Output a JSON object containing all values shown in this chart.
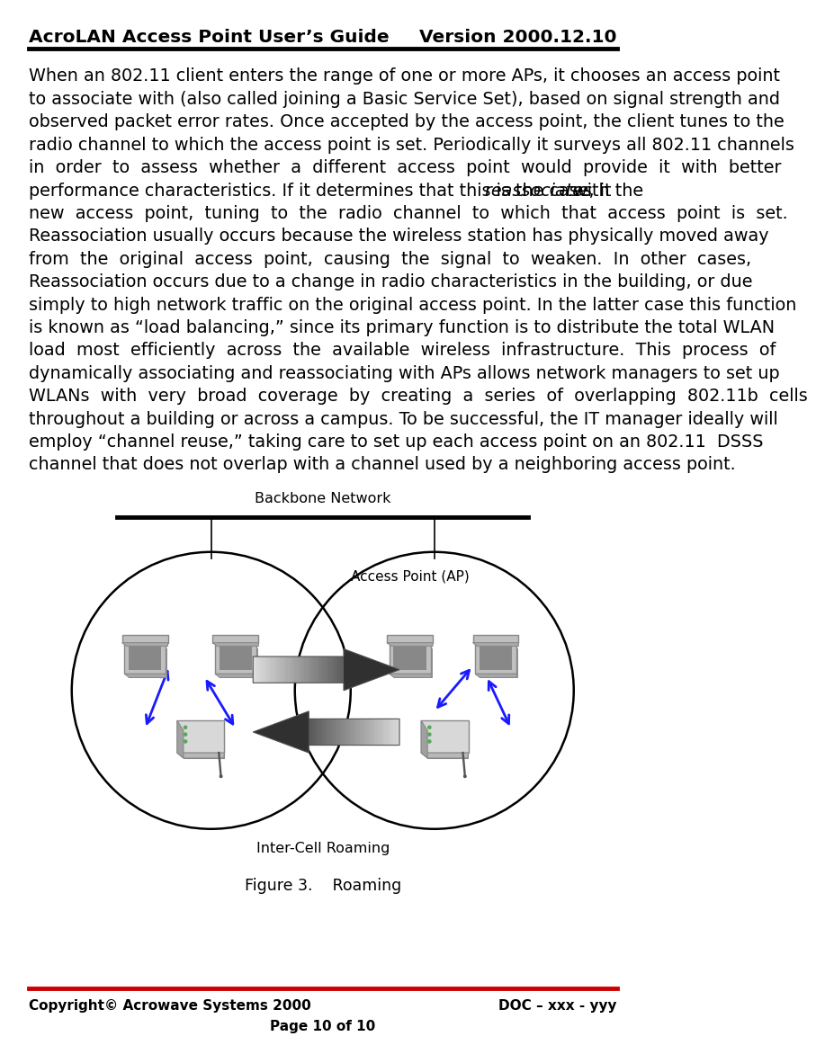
{
  "header_left": "AcroLAN Access Point User’s Guide",
  "header_right": "Version 2000.12.10",
  "footer_left": "Copyright© Acrowave Systems 2000",
  "footer_right": "DOC – xxx - yyy",
  "footer_center": "Page 10 of 10",
  "header_line_color": "#000000",
  "footer_line_color": "#cc0000",
  "body_lines": [
    "When an 802.11 client enters the range of one or more APs, it chooses an access point",
    "to associate with (also called joining a Basic Service Set), based on signal strength and",
    "observed packet error rates. Once accepted by the access point, the client tunes to the",
    "radio channel to which the access point is set. Periodically it surveys all 802.11 channels",
    "in  order  to  assess  whether  a  different  access  point  would  provide  it  with  better",
    "performance characteristics. If it determines that this is the case, it {reassociates} with the",
    "new  access  point,  tuning  to  the  radio  channel  to  which  that  access  point  is  set.",
    "Reassociation usually occurs because the wireless station has physically moved away",
    "from  the  original  access  point,  causing  the  signal  to  weaken.  In  other  cases,",
    "Reassociation occurs due to a change in radio characteristics in the building, or due",
    "simply to high network traffic on the original access point. In the latter case this function",
    "is known as “load balancing,” since its primary function is to distribute the total WLAN",
    "load  most  efficiently  across  the  available  wireless  infrastructure.  This  process  of",
    "dynamically associating and reassociating with APs allows network managers to set up",
    "WLANs  with  very  broad  coverage  by  creating  a  series  of  overlapping  802.11b  cells",
    "throughout a building or across a campus. To be successful, the IT manager ideally will",
    "employ “channel reuse,” taking care to set up each access point on an 802.11  DSSS",
    "channel that does not overlap with a channel used by a neighboring access point."
  ],
  "italic_word": "reassociates",
  "figure_caption": "Figure 3.    Roaming",
  "backbone_label": "Backbone Network",
  "ap_label": "Access Point (AP)",
  "roaming_label": "Inter-Cell Roaming",
  "bg_color": "#ffffff",
  "text_color": "#000000",
  "blue_arrow_color": "#1a1aff",
  "circle_color": "#000000"
}
